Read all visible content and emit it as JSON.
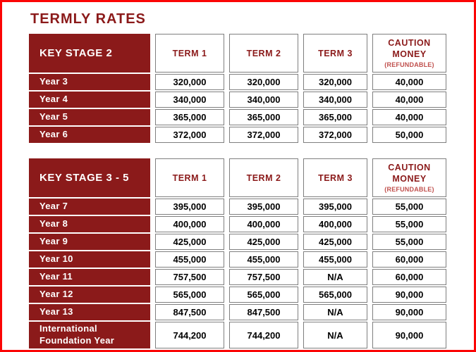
{
  "page": {
    "title": "TERMLY RATES"
  },
  "colors": {
    "maroon": "#8B1A1A",
    "refundable_note_red": "#C0504D",
    "cell_border_gray": "#7F7F7F",
    "frame_red": "#FB0505",
    "value_text": "#000000"
  },
  "tables": [
    {
      "stage_label": "KEY STAGE 2",
      "term_headers": [
        "TERM 1",
        "TERM 2",
        "TERM 3"
      ],
      "caution_header": {
        "title": "CAUTION MONEY",
        "note": "(REFUNDABLE)"
      },
      "rows": [
        {
          "label": "Year 3",
          "values": [
            "320,000",
            "320,000",
            "320,000",
            "40,000"
          ]
        },
        {
          "label": "Year 4",
          "values": [
            "340,000",
            "340,000",
            "340,000",
            "40,000"
          ]
        },
        {
          "label": "Year 5",
          "values": [
            "365,000",
            "365,000",
            "365,000",
            "40,000"
          ]
        },
        {
          "label": "Year 6",
          "values": [
            "372,000",
            "372,000",
            "372,000",
            "50,000"
          ]
        }
      ]
    },
    {
      "stage_label": "KEY STAGE 3 - 5",
      "term_headers": [
        "TERM 1",
        "TERM 2",
        "TERM 3"
      ],
      "caution_header": {
        "title": "CAUTION MONEY",
        "note": "(REFUNDABLE)"
      },
      "rows": [
        {
          "label": "Year 7",
          "values": [
            "395,000",
            "395,000",
            "395,000",
            "55,000"
          ]
        },
        {
          "label": "Year 8",
          "values": [
            "400,000",
            "400,000",
            "400,000",
            "55,000"
          ]
        },
        {
          "label": "Year 9",
          "values": [
            "425,000",
            "425,000",
            "425,000",
            "55,000"
          ]
        },
        {
          "label": "Year 10",
          "values": [
            "455,000",
            "455,000",
            "455,000",
            "60,000"
          ]
        },
        {
          "label": "Year 11",
          "values": [
            "757,500",
            "757,500",
            "N/A",
            "60,000"
          ]
        },
        {
          "label": "Year 12",
          "values": [
            "565,000",
            "565,000",
            "565,000",
            "90,000"
          ]
        },
        {
          "label": "Year 13",
          "values": [
            "847,500",
            "847,500",
            "N/A",
            "90,000"
          ]
        },
        {
          "label": "International Foundation Year",
          "values": [
            "744,200",
            "744,200",
            "N/A",
            "90,000"
          ],
          "tall": true
        }
      ]
    }
  ]
}
